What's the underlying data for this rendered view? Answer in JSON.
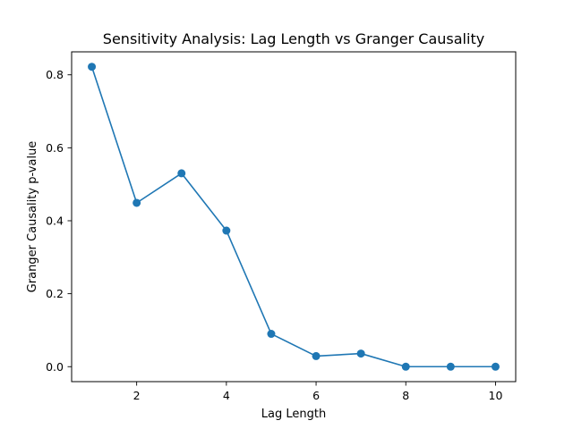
{
  "chart_data": {
    "type": "line",
    "title": "Sensitivity Analysis: Lag Length vs Granger Causality",
    "xlabel": "Lag Length",
    "ylabel": "Granger Causality p-value",
    "x": [
      1,
      2,
      3,
      4,
      5,
      6,
      7,
      8,
      9,
      10
    ],
    "series": [
      {
        "values": [
          0.822,
          0.449,
          0.53,
          0.373,
          0.09,
          0.029,
          0.036,
          0.0,
          0.0,
          0.0
        ]
      }
    ],
    "xlim": [
      0.55,
      10.45
    ],
    "ylim": [
      -0.041,
      0.863
    ],
    "xticks": [
      2,
      4,
      6,
      8,
      10
    ],
    "yticks": [
      0.0,
      0.2,
      0.4,
      0.6,
      0.8
    ],
    "xtick_labels": [
      "2",
      "4",
      "6",
      "8",
      "10"
    ],
    "ytick_labels": [
      "0.0",
      "0.2",
      "0.4",
      "0.6",
      "0.8"
    ],
    "grid": false,
    "marker": "circle",
    "color": "#1f77b4"
  }
}
